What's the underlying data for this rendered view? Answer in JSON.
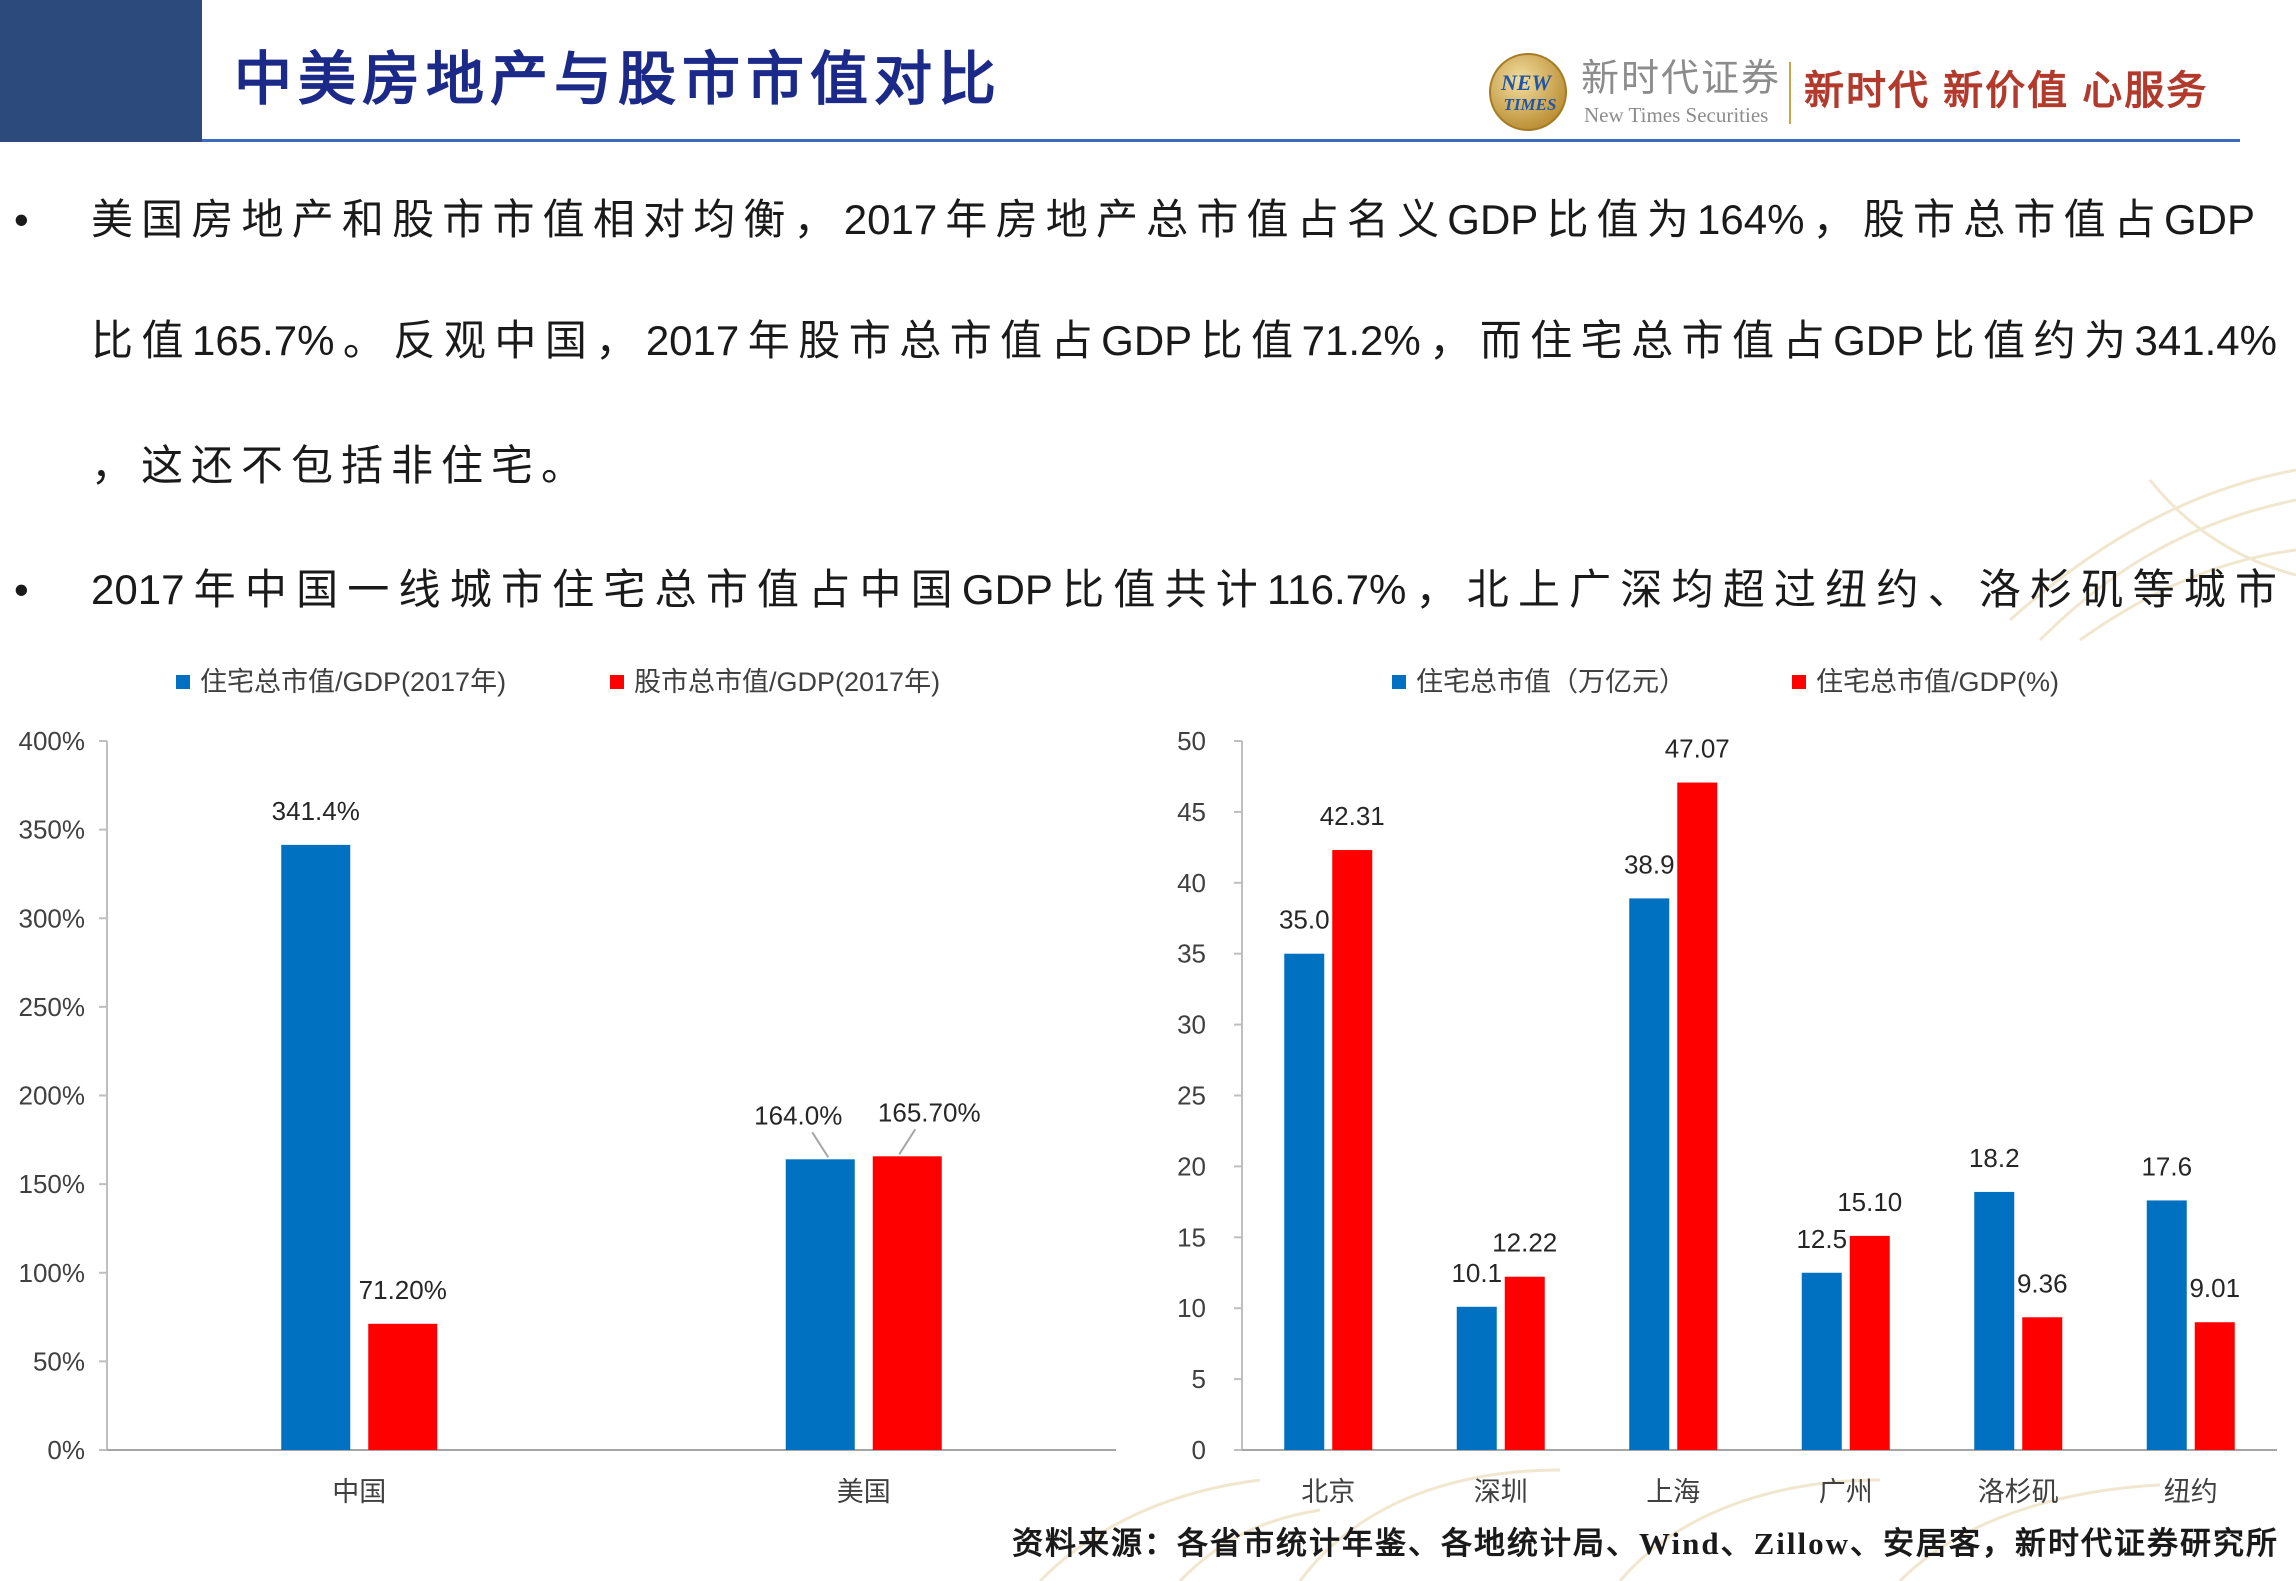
{
  "header": {
    "title": "中美房地产与股市市值对比"
  },
  "logo": {
    "badge_top": "NEW",
    "badge_bottom": "TIMES",
    "company_cn": "新时代证券",
    "company_en": "New Times Securities",
    "slogan": "新时代 新价值 心服务"
  },
  "bullet_symbol": "•",
  "bullets": [
    {
      "lines": [
        "美国房地产和股市市值相对均衡，2017年房地产总市值占名义GDP比值为164%，股市总市值占GDP",
        "比值165.7%。反观中国，2017年股市总市值占GDP比值71.2%，而住宅总市值占GDP比值约为341.4%",
        "，这还不包括非住宅。"
      ]
    },
    {
      "lines": [
        "2017年中国一线城市住宅总市值占中国GDP比值共计116.7%，北上广深均超过纽约、洛杉矶等城市"
      ]
    }
  ],
  "chart_data": [
    {
      "type": "bar",
      "categories": [
        "中国",
        "美国"
      ],
      "series": [
        {
          "name": "住宅总市值/GDP(2017年)",
          "values": [
            341.4,
            164.0
          ],
          "labels": [
            "341.4%",
            "164.0%"
          ],
          "color": "#0070C0"
        },
        {
          "name": "股市总市值/GDP(2017年)",
          "values": [
            71.2,
            165.7
          ],
          "labels": [
            "71.20%",
            "165.70%"
          ],
          "color": "#FF0000"
        }
      ],
      "ylim": [
        0,
        400
      ],
      "ytick_labels": [
        "0%",
        "50%",
        "100%",
        "150%",
        "200%",
        "250%",
        "300%",
        "350%",
        "400%"
      ],
      "legend": "top",
      "grid": false
    },
    {
      "type": "bar",
      "categories": [
        "北京",
        "深圳",
        "上海",
        "广州",
        "洛杉矶",
        "纽约"
      ],
      "series": [
        {
          "name": "住宅总市值（万亿元）",
          "values": [
            35.0,
            10.1,
            38.9,
            12.5,
            18.2,
            17.6
          ],
          "labels": [
            "35.0",
            "10.1",
            "38.9",
            "12.5",
            "18.2",
            "17.6"
          ],
          "color": "#0070C0"
        },
        {
          "name": "住宅总市值/GDP(%)",
          "values": [
            42.31,
            12.22,
            47.07,
            15.1,
            9.36,
            9.01
          ],
          "labels": [
            "42.31",
            "12.22",
            "47.07",
            "15.10",
            "9.36",
            "9.01"
          ],
          "color": "#FF0000"
        }
      ],
      "ylim": [
        0,
        50
      ],
      "ytick_labels": [
        "0",
        "5",
        "10",
        "15",
        "20",
        "25",
        "30",
        "35",
        "40",
        "45",
        "50"
      ],
      "legend": "top",
      "grid": false
    }
  ],
  "source": "资料来源：各省市统计年鉴、各地统计局、Wind、Zillow、安居客，新时代证券研究所"
}
